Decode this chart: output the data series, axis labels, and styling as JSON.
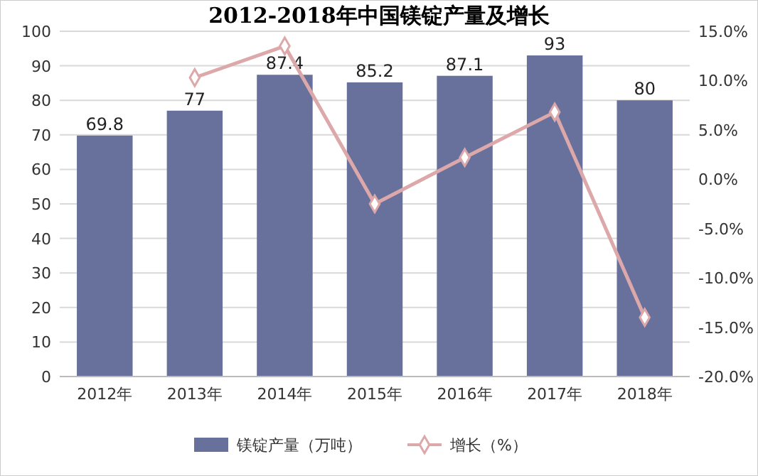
{
  "chart_data": {
    "type": "bar",
    "title": "2012-2018年中国镁锭产量及增长",
    "categories": [
      "2012年",
      "2013年",
      "2014年",
      "2015年",
      "2016年",
      "2017年",
      "2018年"
    ],
    "series": [
      {
        "name": "镁锭产量（万吨）",
        "color": "#68719b",
        "values": [
          69.8,
          77,
          87.4,
          85.2,
          87.1,
          93,
          80
        ],
        "value_labels": [
          "69.8",
          "77",
          "87.4",
          "85.2",
          "87.1",
          "93",
          "80"
        ]
      },
      {
        "name": "增长（%）",
        "type": "line",
        "axis": "y2",
        "color": "#dca8aa",
        "marker": "diamond",
        "values": [
          null,
          10.3,
          13.5,
          -2.5,
          2.2,
          6.8,
          -14.0
        ]
      }
    ],
    "ylim": [
      0,
      100
    ],
    "yticks": [
      0,
      10,
      20,
      30,
      40,
      50,
      60,
      70,
      80,
      90,
      100
    ],
    "y2lim": [
      -20,
      15
    ],
    "y2ticks": [
      {
        "value": -20,
        "label": "-20.0%"
      },
      {
        "value": -15,
        "label": "-15.0%"
      },
      {
        "value": -10,
        "label": "-10.0%"
      },
      {
        "value": -5,
        "label": "-5.0%"
      },
      {
        "value": 0,
        "label": "0.0%"
      },
      {
        "value": 5,
        "label": "5.0%"
      },
      {
        "value": 10,
        "label": "10.0%"
      },
      {
        "value": 15,
        "label": "15.0%"
      }
    ],
    "grid": "y",
    "legend": "bottom"
  }
}
